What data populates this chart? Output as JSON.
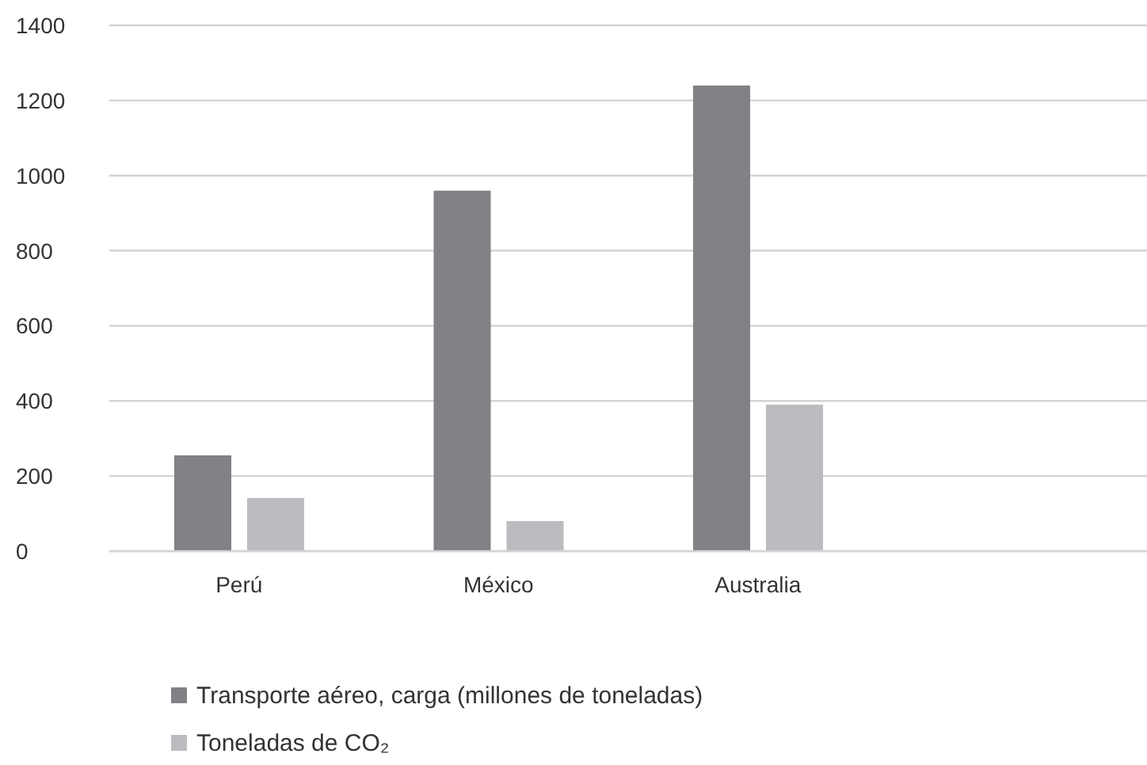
{
  "chart_data": {
    "type": "bar",
    "categories": [
      "Perú",
      "México",
      "Australia",
      null
    ],
    "series": [
      {
        "name": "Transporte aéreo, carga (millones de toneladas)",
        "color": "#818286",
        "values": [
          255,
          960,
          1240,
          null
        ]
      },
      {
        "name": "Toneladas de CO₂",
        "color": "#bbbcc0",
        "values": [
          142,
          80,
          390,
          null
        ]
      }
    ],
    "ylim": [
      0,
      1400
    ],
    "yticks": [
      0,
      200,
      400,
      600,
      800,
      1000,
      1200,
      1400
    ],
    "grid": "y",
    "legend": "bottom"
  }
}
